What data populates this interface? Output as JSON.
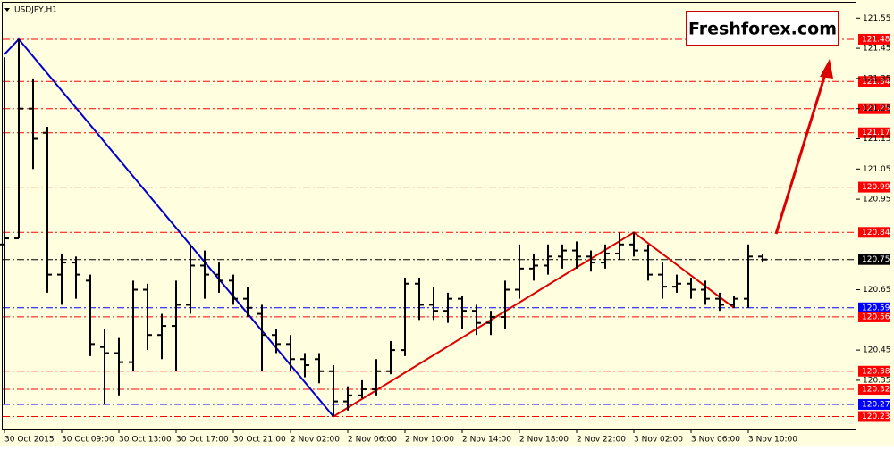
{
  "chart_data": {
    "type": "ohlc",
    "title": "USDJPY,H1",
    "watermark": "Freshforex.com",
    "categories": [
      "30 Oct 2015",
      null,
      null,
      null,
      "30 Oct 09:00",
      null,
      null,
      null,
      "30 Oct 13:00",
      null,
      null,
      null,
      "30 Oct 17:00",
      null,
      null,
      null,
      "30 Oct 21:00",
      null,
      null,
      null,
      "2 Nov 02:00",
      null,
      null,
      null,
      "2 Nov 06:00",
      null,
      null,
      null,
      "2 Nov 10:00",
      null,
      null,
      null,
      "2 Nov 14:00",
      null,
      null,
      null,
      "2 Nov 18:00",
      null,
      null,
      null,
      "2 Nov 22:00",
      null,
      null,
      null,
      "3 Nov 02:00",
      null,
      null,
      null,
      "3 Nov 06:00",
      null,
      null,
      null,
      "3 Nov 10:00",
      null
    ],
    "open": [
      120.8,
      120.82,
      121.25,
      121.17,
      120.7,
      120.74,
      120.68,
      120.46,
      120.44,
      120.41,
      120.65,
      120.5,
      120.53,
      120.6,
      120.73,
      120.7,
      120.68,
      120.62,
      120.57,
      120.5,
      120.47,
      120.42,
      120.42,
      120.38,
      120.28,
      120.3,
      120.32,
      120.38,
      120.45,
      120.67,
      120.6,
      120.58,
      120.62,
      120.58,
      120.54,
      120.56,
      120.65,
      120.72,
      120.73,
      120.76,
      120.78,
      120.76,
      120.74,
      120.77,
      120.8,
      120.78,
      120.7,
      120.66,
      120.67,
      120.65,
      120.62,
      120.6,
      120.62,
      120.76
    ],
    "high": [
      121.42,
      121.48,
      121.35,
      121.19,
      120.77,
      120.76,
      120.7,
      120.52,
      120.49,
      120.68,
      120.67,
      120.57,
      120.68,
      120.8,
      120.78,
      120.74,
      120.7,
      120.66,
      120.6,
      120.52,
      120.5,
      120.44,
      120.44,
      120.4,
      120.33,
      120.35,
      120.42,
      120.48,
      120.69,
      120.69,
      120.66,
      120.64,
      120.63,
      120.6,
      120.58,
      120.68,
      120.8,
      120.77,
      120.8,
      120.8,
      120.81,
      120.78,
      120.8,
      120.84,
      120.84,
      120.8,
      120.74,
      120.7,
      120.69,
      120.68,
      120.64,
      120.63,
      120.8,
      120.77
    ],
    "low": [
      120.27,
      120.82,
      121.05,
      120.64,
      120.6,
      120.62,
      120.43,
      120.27,
      120.3,
      120.38,
      120.45,
      120.42,
      120.38,
      120.57,
      120.62,
      120.64,
      120.6,
      120.56,
      120.38,
      120.44,
      120.38,
      120.36,
      120.34,
      120.23,
      120.25,
      120.29,
      120.3,
      120.37,
      120.43,
      120.55,
      120.55,
      120.54,
      120.52,
      120.5,
      120.5,
      120.52,
      120.62,
      120.68,
      120.7,
      120.72,
      120.72,
      120.71,
      120.72,
      120.75,
      120.76,
      120.68,
      120.62,
      120.64,
      120.62,
      120.6,
      120.58,
      120.59,
      120.59,
      120.74
    ],
    "close": [
      120.82,
      121.25,
      121.15,
      120.7,
      120.74,
      120.7,
      120.47,
      120.44,
      120.41,
      120.65,
      120.5,
      120.53,
      120.6,
      120.73,
      120.7,
      120.68,
      120.62,
      120.59,
      120.5,
      120.47,
      120.42,
      120.4,
      120.38,
      120.28,
      120.3,
      120.32,
      120.38,
      120.45,
      120.67,
      120.6,
      120.58,
      120.62,
      120.58,
      120.54,
      120.56,
      120.65,
      120.72,
      120.73,
      120.76,
      120.78,
      120.76,
      120.74,
      120.77,
      120.8,
      120.78,
      120.7,
      120.66,
      120.67,
      120.65,
      120.62,
      120.6,
      120.62,
      120.76,
      120.75
    ],
    "bar_color": "#000000",
    "zigzag": [
      {
        "color": "#0000cc",
        "x": [
          0,
          1,
          23
        ],
        "y": [
          121.43,
          121.48,
          120.23
        ]
      },
      {
        "color": "#e00000",
        "x": [
          23,
          44,
          51
        ],
        "y": [
          120.23,
          120.84,
          120.59
        ]
      }
    ],
    "levels": [
      {
        "value": 121.48,
        "color": "#ff0000"
      },
      {
        "value": 121.34,
        "color": "#ff0000"
      },
      {
        "value": 121.25,
        "color": "#ff0000"
      },
      {
        "value": 121.17,
        "color": "#ff0000"
      },
      {
        "value": 120.99,
        "color": "#ff0000"
      },
      {
        "value": 120.84,
        "color": "#ff0000"
      },
      {
        "value": 120.75,
        "color": "#000000"
      },
      {
        "value": 120.59,
        "color": "#0000ff"
      },
      {
        "value": 120.56,
        "color": "#ff0000"
      },
      {
        "value": 120.38,
        "color": "#ff0000"
      },
      {
        "value": 120.32,
        "color": "#ff0000"
      },
      {
        "value": 120.27,
        "color": "#0000ff"
      },
      {
        "value": 120.23,
        "color": "#ff0000"
      }
    ],
    "ylim": [
      120.19,
      121.61
    ],
    "yticks": [
      121.55,
      121.45,
      121.35,
      121.25,
      121.15,
      121.05,
      120.95,
      120.65,
      120.45,
      120.35
    ],
    "grid": false
  }
}
